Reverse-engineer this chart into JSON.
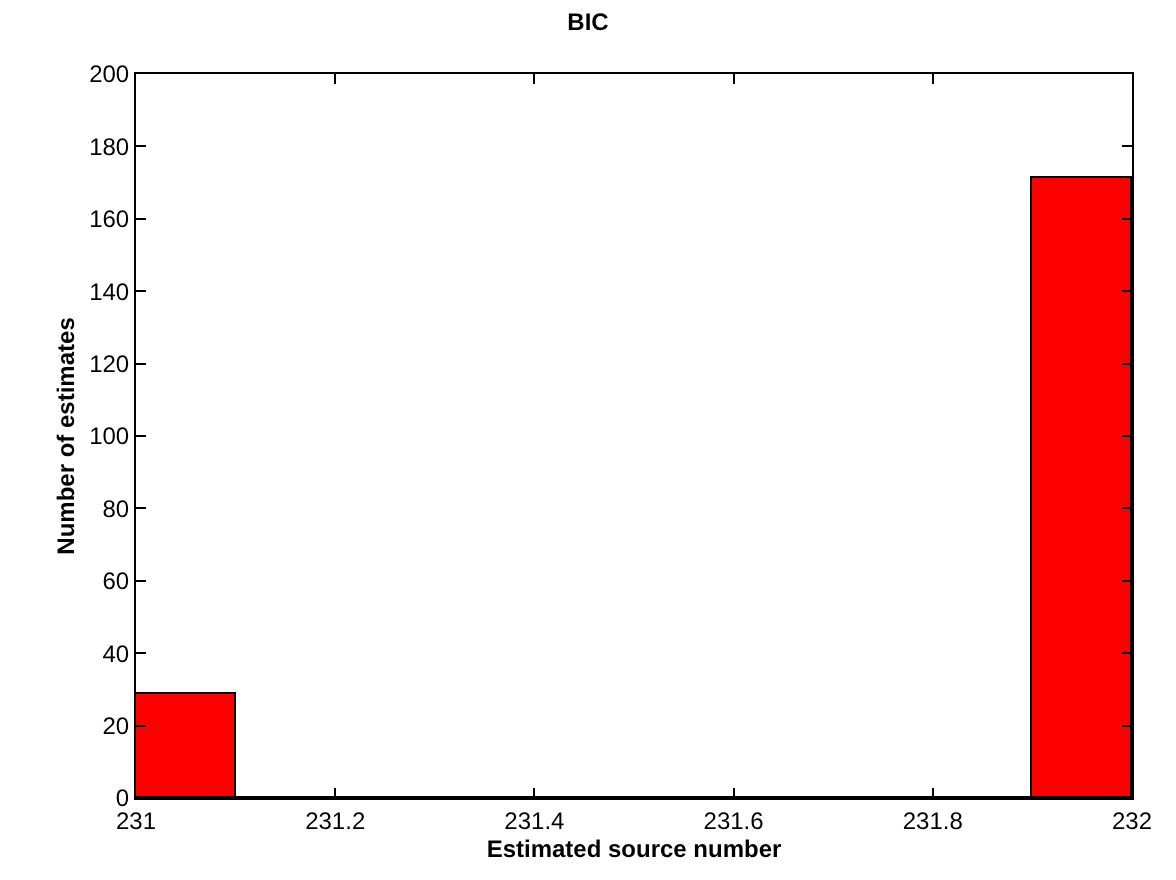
{
  "chart_data": {
    "type": "histogram",
    "title": "BIC",
    "xlabel": "Estimated source number",
    "ylabel": "Number of estimates",
    "bins": [
      231,
      231.1,
      231.2,
      231.3,
      231.4,
      231.5,
      231.6,
      231.7,
      231.8,
      231.9,
      232
    ],
    "values": [
      29,
      0,
      0,
      0,
      0,
      0,
      0,
      0,
      0,
      171
    ],
    "color": "#ff0000",
    "xlim": [
      231,
      232
    ],
    "xticks": [
      231,
      231.2,
      231.4,
      231.6,
      231.8,
      232
    ],
    "ylim": [
      0,
      200
    ],
    "yticks": [
      0,
      20,
      40,
      60,
      80,
      100,
      120,
      140,
      160,
      180,
      200
    ]
  }
}
